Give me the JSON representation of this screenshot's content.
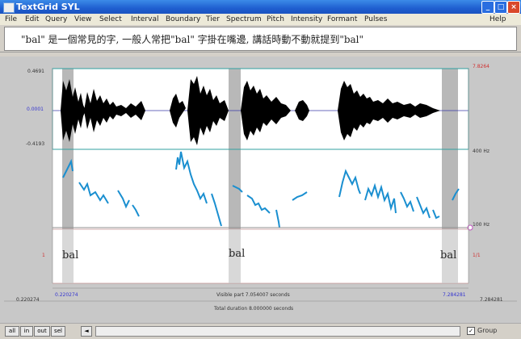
{
  "window": {
    "title": "TextGrid SYL"
  },
  "menu": [
    "File",
    "Edit",
    "Query",
    "View",
    "Select",
    "Interval",
    "Boundary",
    "Tier",
    "Spectrum",
    "Pitch",
    "Intensity",
    "Formant",
    "Pulses",
    "Help"
  ],
  "text_line": "\"bal\" 是一個常見的字, 一般人常把\"bal\" 字掛在嘴邊, 講話時動不動就提到\"bal\"",
  "axis": {
    "wave_top": "0.4691",
    "wave_zero": "0.0001",
    "wave_bottom": "-0.4193",
    "pitch_top": "400 Hz",
    "pitch_bottom": "100 Hz",
    "right_top": "7.8264",
    "tier_left": "1",
    "tier_right": "1/1",
    "time_start": "0.220274",
    "time_left_window": "0.220274",
    "visible_part": "Visible part 7.054007 seconds",
    "time_right_window": "7.284281",
    "time_right": "7.284281",
    "total_duration": "Total duration 8.000000 seconds"
  },
  "intervals": [
    "bal",
    "bal",
    "bal"
  ],
  "bottom": {
    "zoom_all": "all",
    "zoom_in": "in",
    "zoom_out": "out",
    "zoom_sel": "sel",
    "scroll_left": "◄",
    "scroll_right": "►",
    "group_label": "Group",
    "group_checked": "✓"
  }
}
